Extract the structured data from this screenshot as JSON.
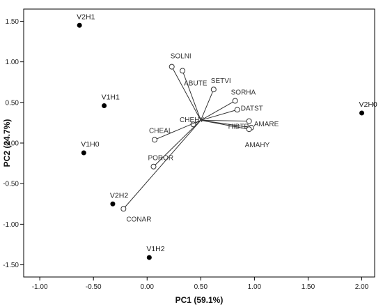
{
  "chart_data": {
    "type": "scatter",
    "xlabel": "PC1 (59.1%)",
    "ylabel": "PC2 (24.7%)",
    "xlim": [
      -1.15,
      2.12
    ],
    "ylim": [
      -1.65,
      1.65
    ],
    "xticks": [
      -1.0,
      -0.5,
      0.0,
      0.5,
      1.0,
      1.5,
      2.0
    ],
    "xtick_labels": [
      "-1.00",
      "-0.50",
      "0.00",
      "0.50",
      "1.00",
      "1.50",
      "2.00"
    ],
    "yticks": [
      1.5,
      1.0,
      0.5,
      0.0,
      -0.5,
      -1.0,
      -1.5
    ],
    "ytick_labels": [
      "1.50",
      "1.00",
      "0.50",
      "0.00",
      "-0.50",
      "-1.00",
      "-1.50"
    ],
    "grid": false,
    "vector_origin": [
      0.5,
      0.28
    ],
    "points": [
      {
        "label": "V2H1",
        "x": -0.63,
        "y": 1.45
      },
      {
        "label": "V1H1",
        "x": -0.4,
        "y": 0.46
      },
      {
        "label": "V1H0",
        "x": -0.59,
        "y": -0.12
      },
      {
        "label": "V2H2",
        "x": -0.32,
        "y": -0.75
      },
      {
        "label": "V1H2",
        "x": 0.02,
        "y": -1.41
      },
      {
        "label": "V2H0",
        "x": 2.0,
        "y": 0.37
      }
    ],
    "vectors": [
      {
        "label": "SOLNI",
        "x": 0.23,
        "y": 0.94
      },
      {
        "label": "ABUTE",
        "x": 0.33,
        "y": 0.89
      },
      {
        "label": "SETVI",
        "x": 0.62,
        "y": 0.66
      },
      {
        "label": "SORHA",
        "x": 0.82,
        "y": 0.52
      },
      {
        "label": "DATST",
        "x": 0.84,
        "y": 0.41
      },
      {
        "label": "CHEHY",
        "x": 0.43,
        "y": 0.23
      },
      {
        "label": "CHEAL",
        "x": 0.07,
        "y": 0.04
      },
      {
        "label": "HIBTR",
        "x": 0.95,
        "y": 0.27
      },
      {
        "label": "AMARE",
        "x": 0.97,
        "y": 0.19
      },
      {
        "label": "AMAHY",
        "x": 0.95,
        "y": 0.17
      },
      {
        "label": "POROR",
        "x": 0.06,
        "y": -0.29
      },
      {
        "label": "CONAR",
        "x": -0.22,
        "y": -0.81
      }
    ]
  }
}
